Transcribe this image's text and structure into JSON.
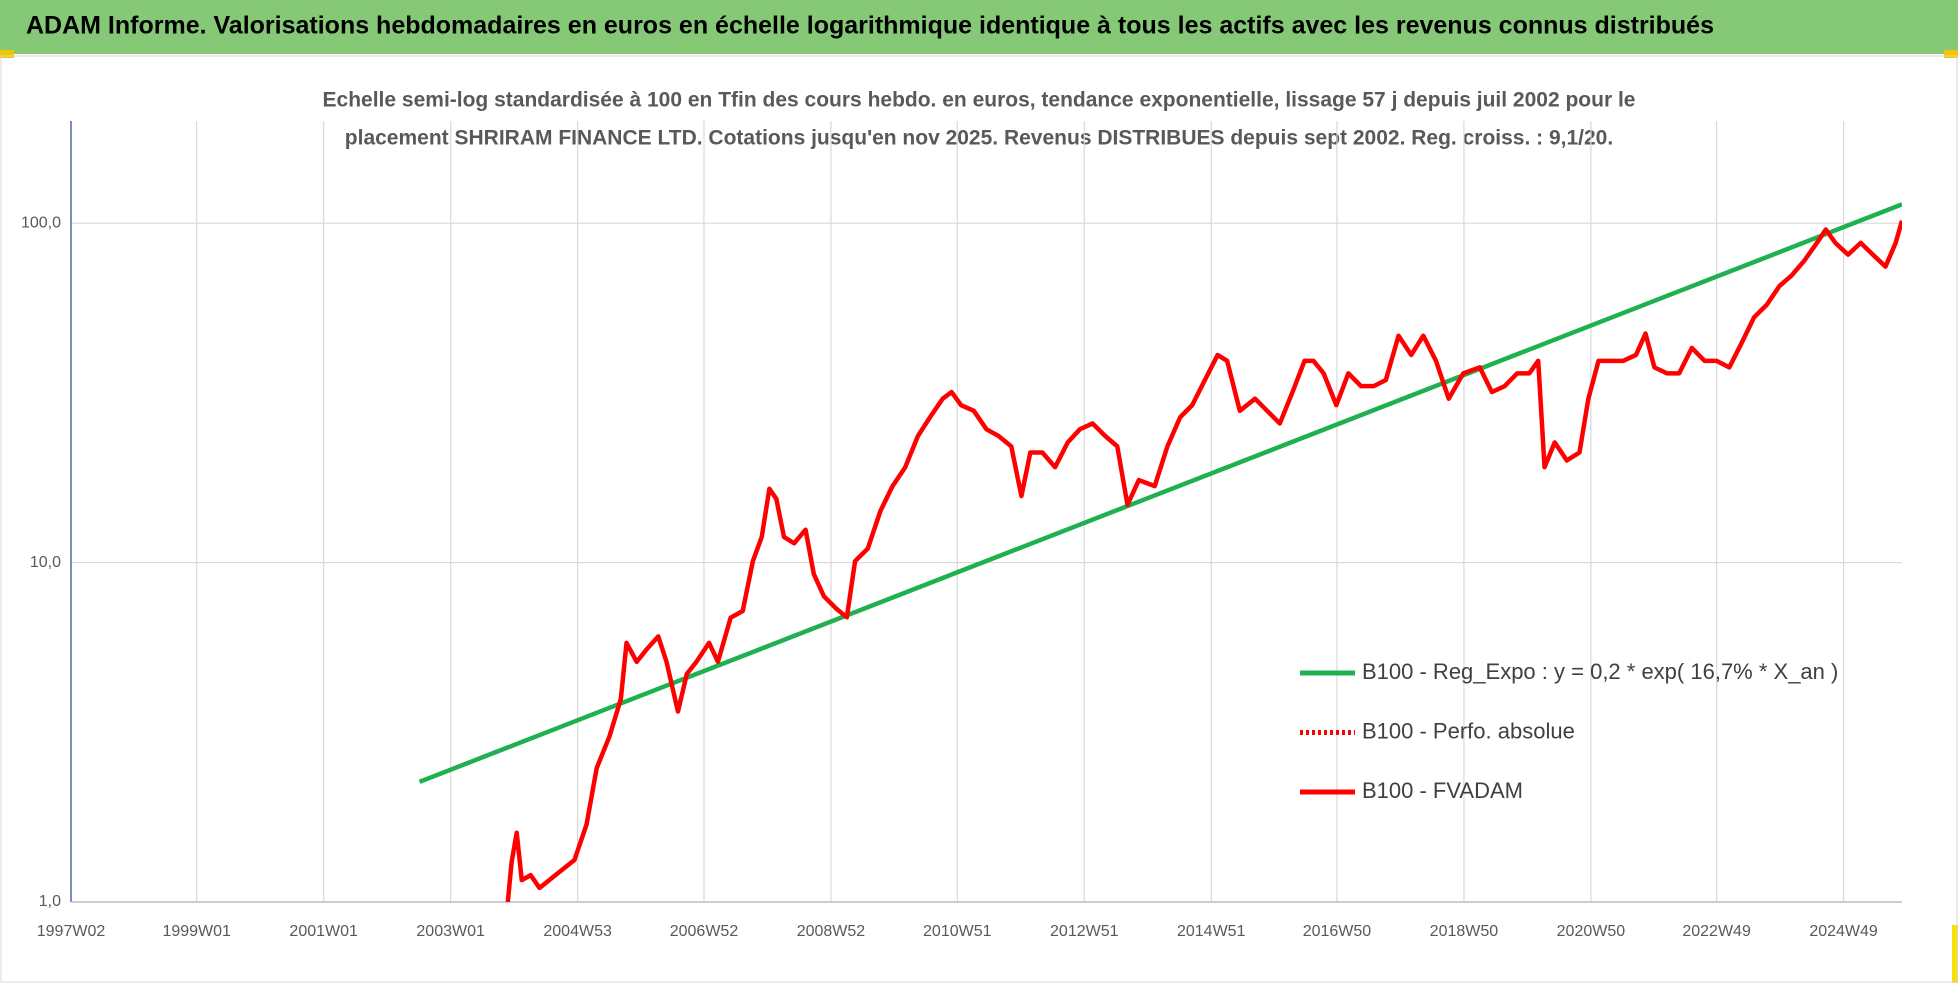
{
  "chart_data": {
    "type": "line",
    "title": "ADAM Informe. Valorisations hebdomadaires en euros en échelle logarithmique identique à tous les actifs avec les revenus connus distribués",
    "subtitle": [
      "Echelle semi-log standardisée à 100 en Tfin des cours hebdo. en euros, tendance exponentielle, lissage 57 j depuis juil 2002 pour le",
      "placement SHRIRAM FINANCE LTD. Cotations jusqu'en nov 2025. Revenus DISTRIBUES depuis sept 2002. Reg. croiss. : 9,1/20."
    ],
    "y_log": true,
    "grid": true,
    "legend": "right",
    "xlim": [
      1997.02,
      2025.86
    ],
    "ylim": [
      1,
      200
    ],
    "xticks": [
      {
        "value": 1997.02,
        "label": "1997W02"
      },
      {
        "value": 1999.0,
        "label": "1999W01"
      },
      {
        "value": 2001.0,
        "label": "2001W01"
      },
      {
        "value": 2003.0,
        "label": "2003W01"
      },
      {
        "value": 2005.0,
        "label": "2004W53"
      },
      {
        "value": 2006.99,
        "label": "2006W52"
      },
      {
        "value": 2008.99,
        "label": "2008W52"
      },
      {
        "value": 2010.98,
        "label": "2010W51"
      },
      {
        "value": 2012.98,
        "label": "2012W51"
      },
      {
        "value": 2014.98,
        "label": "2014W51"
      },
      {
        "value": 2016.96,
        "label": "2016W50"
      },
      {
        "value": 2018.96,
        "label": "2018W50"
      },
      {
        "value": 2020.96,
        "label": "2020W50"
      },
      {
        "value": 2022.94,
        "label": "2022W49"
      },
      {
        "value": 2024.94,
        "label": "2024W49"
      }
    ],
    "yticks": [
      {
        "value": 1,
        "label": "1,0"
      },
      {
        "value": 10,
        "label": "10,0"
      },
      {
        "value": 100,
        "label": "100,0"
      }
    ],
    "series": [
      {
        "name": "B100 - Reg_Expo : y = 0,2 * exp( 16,7% *  X_an )",
        "color": "#1fb050",
        "style": "solid",
        "x": [
          2002.51,
          2025.86
        ],
        "values": [
          2.26,
          113.6
        ]
      },
      {
        "name": "B100 - Perfo. absolue",
        "color": "#ff0000",
        "style": "dotted",
        "x": [],
        "values": []
      },
      {
        "name": "B100 - FVADAM",
        "color": "#ff0000",
        "style": "solid",
        "x": [
          2003.9,
          2003.96,
          2004.04,
          2004.12,
          2004.26,
          2004.4,
          2004.65,
          2004.95,
          2005.14,
          2005.3,
          2005.5,
          2005.68,
          2005.77,
          2005.93,
          2006.09,
          2006.27,
          2006.4,
          2006.58,
          2006.72,
          2006.87,
          2007.07,
          2007.21,
          2007.41,
          2007.6,
          2007.76,
          2007.9,
          2008.02,
          2008.13,
          2008.25,
          2008.41,
          2008.59,
          2008.72,
          2008.88,
          2009.08,
          2009.24,
          2009.37,
          2009.57,
          2009.77,
          2009.96,
          2010.16,
          2010.36,
          2010.55,
          2010.75,
          2010.89,
          2011.04,
          2011.24,
          2011.44,
          2011.63,
          2011.83,
          2011.99,
          2012.13,
          2012.32,
          2012.52,
          2012.72,
          2012.91,
          2013.11,
          2013.31,
          2013.5,
          2013.66,
          2013.84,
          2014.09,
          2014.29,
          2014.49,
          2014.68,
          2014.88,
          2015.08,
          2015.23,
          2015.43,
          2015.67,
          2015.86,
          2016.06,
          2016.26,
          2016.45,
          2016.59,
          2016.75,
          2016.95,
          2017.14,
          2017.34,
          2017.54,
          2017.73,
          2017.93,
          2018.13,
          2018.32,
          2018.52,
          2018.72,
          2018.95,
          2019.21,
          2019.4,
          2019.6,
          2019.8,
          2019.99,
          2020.13,
          2020.23,
          2020.39,
          2020.58,
          2020.78,
          2020.92,
          2021.08,
          2021.27,
          2021.47,
          2021.67,
          2021.82,
          2021.96,
          2022.16,
          2022.35,
          2022.55,
          2022.75,
          2022.94,
          2023.14,
          2023.34,
          2023.53,
          2023.73,
          2023.93,
          2024.12,
          2024.32,
          2024.52,
          2024.66,
          2024.81,
          2025.01,
          2025.21,
          2025.4,
          2025.6,
          2025.76,
          2025.86
        ],
        "values": [
          1.0,
          1.31,
          1.6,
          1.16,
          1.2,
          1.1,
          1.2,
          1.33,
          1.69,
          2.48,
          3.07,
          3.96,
          5.8,
          5.1,
          5.56,
          6.06,
          5.1,
          3.64,
          4.7,
          5.1,
          5.8,
          5.1,
          6.88,
          7.2,
          10.1,
          11.9,
          16.5,
          15.4,
          11.9,
          11.4,
          12.5,
          9.25,
          7.95,
          7.3,
          6.9,
          10.1,
          11.0,
          14.2,
          16.8,
          19.1,
          23.6,
          26.8,
          30.4,
          31.8,
          29.1,
          28.0,
          24.7,
          23.6,
          22.0,
          15.7,
          21.1,
          21.1,
          19.1,
          22.6,
          24.7,
          25.7,
          23.6,
          22.0,
          14.8,
          17.5,
          16.8,
          22.0,
          26.8,
          29.1,
          34.5,
          40.9,
          39.3,
          28.0,
          30.4,
          28.0,
          25.7,
          31.8,
          39.3,
          39.3,
          36.1,
          29.1,
          36.1,
          33.1,
          33.1,
          34.5,
          46.6,
          40.9,
          46.6,
          39.3,
          30.4,
          36.1,
          37.6,
          31.8,
          33.1,
          36.1,
          36.1,
          39.3,
          19.1,
          22.6,
          20.0,
          21.1,
          30.4,
          39.3,
          39.3,
          39.3,
          40.9,
          47.3,
          37.6,
          36.1,
          36.1,
          42.9,
          39.3,
          39.3,
          37.6,
          44.6,
          52.8,
          57.5,
          65.3,
          70.1,
          77.5,
          87.5,
          95.8,
          87.5,
          80.8,
          87.5,
          80.8,
          74.5,
          87.5,
          101.7
        ]
      }
    ]
  }
}
